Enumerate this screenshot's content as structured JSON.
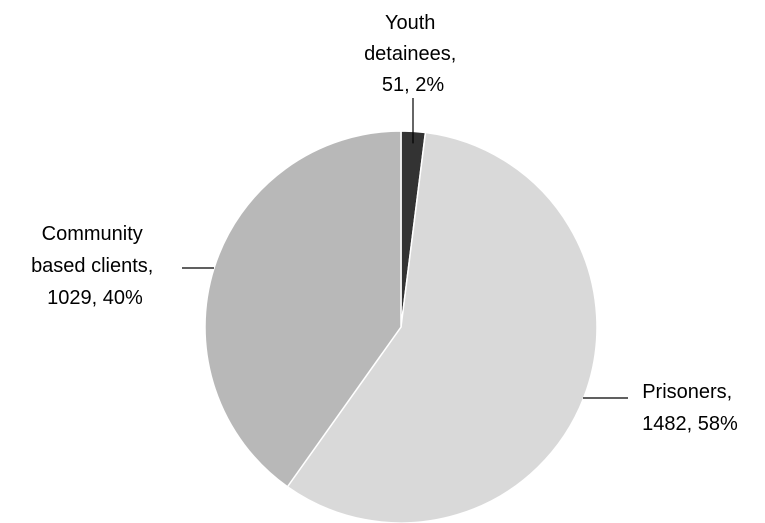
{
  "chart_data": {
    "type": "pie",
    "slices": [
      {
        "key": "youth",
        "name": "Youth detainees",
        "value": 51,
        "percent": 2,
        "color": "#333333",
        "label_lines": [
          "Youth",
          "detainees,",
          "51, 2%"
        ]
      },
      {
        "key": "prisoners",
        "name": "Prisoners",
        "value": 1482,
        "percent": 58,
        "color": "#d9d9d9",
        "label_lines": [
          "Prisoners,",
          "1482, 58%"
        ]
      },
      {
        "key": "community",
        "name": "Community based clients",
        "value": 1029,
        "percent": 40,
        "color": "#b8b8b8",
        "label_lines": [
          "Community",
          "based clients,",
          "1029, 40%"
        ]
      }
    ],
    "start_angle": "12 o'clock",
    "direction": "clockwise",
    "legend": "none"
  }
}
